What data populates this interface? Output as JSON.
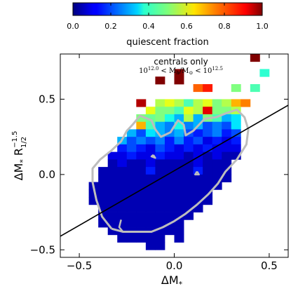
{
  "chart_data": {
    "type": "heatmap",
    "title": "",
    "xlabel": "ΔM_*",
    "ylabel": "ΔM_* R_1/2^-1.5",
    "xlim": [
      -0.6,
      0.6
    ],
    "ylim": [
      -0.55,
      0.8
    ],
    "xticks": [
      -0.5,
      0.0,
      0.5
    ],
    "yticks": [
      -0.5,
      0.0,
      0.5
    ],
    "xtick_labels": [
      "−0.5",
      "0.0",
      "0.5"
    ],
    "ytick_labels": [
      "−0.5",
      "0.0",
      "0.5"
    ],
    "grid": false,
    "bin_width": 0.05,
    "colorbar": {
      "label": "quiescent fraction",
      "min": 0.0,
      "max": 1.0,
      "ticks": [
        0.0,
        0.2,
        0.4,
        0.6,
        0.8,
        1.0
      ],
      "tick_labels": [
        "0.0",
        "0.2",
        "0.4",
        "0.6",
        "0.8",
        "1.0"
      ],
      "colormap": "jet"
    },
    "annotation": {
      "line1": "centrals only",
      "line2_base": "10",
      "line2_exp1": "12.0",
      "line2_mid": "< M",
      "line2_sub": "h",
      "line2_slash": "/M",
      "line2_sun": "⊙",
      "line2_lt": "<",
      "line2_base2": "10",
      "line2_exp2": "12.5"
    },
    "fit_line": {
      "x": [
        -0.6,
        0.6
      ],
      "y": [
        -0.41,
        0.46
      ],
      "color": "#000000"
    },
    "rows": [
      {
        "y": 0.75,
        "cells": [
          [
            0.4,
            1.0
          ]
        ]
      },
      {
        "y": 0.65,
        "cells": [
          [
            0.0,
            1.0
          ],
          [
            0.45,
            0.42
          ]
        ]
      },
      {
        "y": 0.6,
        "cells": [
          [
            -0.1,
            1.0
          ],
          [
            0.0,
            1.0
          ]
        ]
      },
      {
        "y": 0.55,
        "cells": [
          [
            0.1,
            0.78
          ],
          [
            0.15,
            0.85
          ],
          [
            0.3,
            0.5
          ],
          [
            0.4,
            0.45
          ]
        ]
      },
      {
        "y": 0.45,
        "cells": [
          [
            -0.2,
            0.95
          ],
          [
            -0.1,
            0.55
          ],
          [
            -0.05,
            0.6
          ],
          [
            0.0,
            0.55
          ],
          [
            0.05,
            0.45
          ],
          [
            0.1,
            0.55
          ],
          [
            0.15,
            0.6
          ],
          [
            0.2,
            0.5
          ],
          [
            0.25,
            0.55
          ],
          [
            0.3,
            0.7
          ],
          [
            0.35,
            0.75
          ]
        ]
      },
      {
        "y": 0.4,
        "cells": [
          [
            -0.15,
            0.6
          ],
          [
            -0.1,
            0.5
          ],
          [
            -0.05,
            0.5
          ],
          [
            0.0,
            0.45
          ],
          [
            0.05,
            0.6
          ],
          [
            0.1,
            0.55
          ],
          [
            0.15,
            0.9
          ],
          [
            0.2,
            0.5
          ],
          [
            0.25,
            0.5
          ],
          [
            0.3,
            0.55
          ]
        ]
      },
      {
        "y": 0.35,
        "cells": [
          [
            -0.2,
            0.5
          ],
          [
            -0.15,
            0.48
          ],
          [
            -0.1,
            0.5
          ],
          [
            -0.05,
            0.4
          ],
          [
            0.0,
            0.3
          ],
          [
            0.05,
            0.55
          ],
          [
            0.1,
            0.3
          ],
          [
            0.15,
            0.5
          ],
          [
            0.2,
            0.45
          ],
          [
            0.25,
            0.3
          ],
          [
            0.3,
            0.35
          ]
        ]
      },
      {
        "y": 0.3,
        "cells": [
          [
            -0.2,
            0.7
          ],
          [
            -0.15,
            0.45
          ],
          [
            -0.1,
            0.3
          ],
          [
            -0.05,
            0.25
          ],
          [
            0.0,
            0.4
          ],
          [
            0.05,
            0.25
          ],
          [
            0.1,
            0.3
          ],
          [
            0.15,
            0.2
          ],
          [
            0.2,
            0.25
          ],
          [
            0.25,
            0.2
          ],
          [
            0.3,
            0.35
          ]
        ]
      },
      {
        "y": 0.25,
        "cells": [
          [
            -0.25,
            0.3
          ],
          [
            -0.2,
            0.2
          ],
          [
            -0.15,
            0.35
          ],
          [
            -0.1,
            0.3
          ],
          [
            -0.05,
            0.25
          ],
          [
            0.0,
            0.3
          ],
          [
            0.05,
            0.2
          ],
          [
            0.1,
            0.15
          ],
          [
            0.15,
            0.2
          ],
          [
            0.2,
            0.25
          ],
          [
            0.25,
            0.15
          ],
          [
            0.3,
            0.2
          ]
        ]
      },
      {
        "y": 0.2,
        "cells": [
          [
            -0.3,
            0.3
          ],
          [
            -0.25,
            0.2
          ],
          [
            -0.2,
            0.25
          ],
          [
            -0.15,
            0.2
          ],
          [
            -0.1,
            0.25
          ],
          [
            -0.05,
            0.15
          ],
          [
            0.0,
            0.25
          ],
          [
            0.05,
            0.15
          ],
          [
            0.1,
            0.2
          ],
          [
            0.15,
            0.1
          ],
          [
            0.2,
            0.15
          ],
          [
            0.25,
            0.1
          ],
          [
            0.3,
            0.15
          ]
        ]
      },
      {
        "y": 0.15,
        "cells": [
          [
            -0.3,
            0.15
          ],
          [
            -0.25,
            0.2
          ],
          [
            -0.2,
            0.15
          ],
          [
            -0.15,
            0.1
          ],
          [
            -0.1,
            0.2
          ],
          [
            -0.05,
            0.15
          ],
          [
            0.0,
            0.1
          ],
          [
            0.05,
            0.15
          ],
          [
            0.1,
            0.1
          ],
          [
            0.15,
            0.15
          ],
          [
            0.2,
            0.1
          ],
          [
            0.25,
            0.1
          ],
          [
            0.3,
            0.1
          ]
        ]
      },
      {
        "y": 0.1,
        "cells": [
          [
            -0.35,
            0.1
          ],
          [
            -0.3,
            0.1
          ],
          [
            -0.25,
            0.15
          ],
          [
            -0.2,
            0.1
          ],
          [
            -0.15,
            0.1
          ],
          [
            -0.1,
            0.15
          ],
          [
            -0.05,
            0.1
          ],
          [
            0.0,
            0.1
          ],
          [
            0.05,
            0.05
          ],
          [
            0.1,
            0.1
          ],
          [
            0.15,
            0.05
          ],
          [
            0.2,
            0.1
          ],
          [
            0.25,
            0.05
          ],
          [
            0.3,
            0.05
          ]
        ]
      },
      {
        "y": 0.05,
        "cells": [
          [
            -0.35,
            0.05
          ],
          [
            -0.3,
            0.1
          ],
          [
            -0.25,
            0.05
          ],
          [
            -0.2,
            0.05
          ],
          [
            -0.15,
            0.1
          ],
          [
            -0.1,
            0.05
          ],
          [
            -0.05,
            0.05
          ],
          [
            0.0,
            0.05
          ],
          [
            0.05,
            0.05
          ],
          [
            0.1,
            0.1
          ],
          [
            0.15,
            0.05
          ],
          [
            0.2,
            0.05
          ],
          [
            0.25,
            0.05
          ]
        ]
      },
      {
        "y": 0.0,
        "cells": [
          [
            -0.4,
            0.05
          ],
          [
            -0.35,
            0.05
          ],
          [
            -0.3,
            0.05
          ],
          [
            -0.25,
            0.05
          ],
          [
            -0.2,
            0.05
          ],
          [
            -0.15,
            0.15
          ],
          [
            -0.1,
            0.05
          ],
          [
            -0.05,
            0.05
          ],
          [
            0.0,
            0.05
          ],
          [
            0.05,
            0.05
          ],
          [
            0.1,
            0.15
          ],
          [
            0.15,
            0.05
          ],
          [
            0.2,
            0.05
          ],
          [
            0.25,
            0.05
          ]
        ]
      },
      {
        "y": -0.05,
        "cells": [
          [
            -0.4,
            0.05
          ],
          [
            -0.35,
            0.05
          ],
          [
            -0.3,
            0.05
          ],
          [
            -0.25,
            0.05
          ],
          [
            -0.2,
            0.05
          ],
          [
            -0.15,
            0.05
          ],
          [
            -0.1,
            0.05
          ],
          [
            -0.05,
            0.05
          ],
          [
            0.0,
            0.05
          ],
          [
            0.05,
            0.05
          ],
          [
            0.1,
            0.05
          ],
          [
            0.15,
            0.05
          ],
          [
            0.2,
            0.05
          ],
          [
            0.25,
            0.05
          ]
        ]
      },
      {
        "y": -0.1,
        "cells": [
          [
            -0.45,
            0.05
          ],
          [
            -0.4,
            0.05
          ],
          [
            -0.35,
            0.05
          ],
          [
            -0.3,
            0.05
          ],
          [
            -0.25,
            0.05
          ],
          [
            -0.2,
            0.05
          ],
          [
            -0.15,
            0.05
          ],
          [
            -0.1,
            0.05
          ],
          [
            -0.05,
            0.05
          ],
          [
            0.0,
            0.05
          ],
          [
            0.05,
            0.05
          ],
          [
            0.1,
            0.05
          ],
          [
            0.15,
            0.05
          ],
          [
            0.2,
            0.05
          ]
        ]
      },
      {
        "y": -0.15,
        "cells": [
          [
            -0.45,
            0.05
          ],
          [
            -0.4,
            0.05
          ],
          [
            -0.35,
            0.05
          ],
          [
            -0.3,
            0.05
          ],
          [
            -0.25,
            0.05
          ],
          [
            -0.2,
            0.05
          ],
          [
            -0.15,
            0.05
          ],
          [
            -0.1,
            0.05
          ],
          [
            -0.05,
            0.05
          ],
          [
            0.0,
            0.05
          ],
          [
            0.05,
            0.05
          ],
          [
            0.1,
            0.05
          ],
          [
            0.15,
            0.05
          ]
        ]
      },
      {
        "y": -0.2,
        "cells": [
          [
            -0.45,
            0.05
          ],
          [
            -0.4,
            0.05
          ],
          [
            -0.35,
            0.05
          ],
          [
            -0.3,
            0.05
          ],
          [
            -0.25,
            0.05
          ],
          [
            -0.2,
            0.05
          ],
          [
            -0.15,
            0.05
          ],
          [
            -0.1,
            0.05
          ],
          [
            -0.05,
            0.05
          ],
          [
            0.0,
            0.05
          ],
          [
            0.05,
            0.05
          ],
          [
            0.1,
            0.05
          ],
          [
            0.15,
            0.05
          ]
        ]
      },
      {
        "y": -0.25,
        "cells": [
          [
            -0.4,
            0.05
          ],
          [
            -0.35,
            0.05
          ],
          [
            -0.3,
            0.05
          ],
          [
            -0.25,
            0.05
          ],
          [
            -0.2,
            0.05
          ],
          [
            -0.15,
            0.05
          ],
          [
            -0.1,
            0.05
          ],
          [
            -0.05,
            0.05
          ],
          [
            0.0,
            0.05
          ],
          [
            0.05,
            0.05
          ],
          [
            0.1,
            0.05
          ]
        ]
      },
      {
        "y": -0.3,
        "cells": [
          [
            -0.4,
            0.05
          ],
          [
            -0.35,
            0.05
          ],
          [
            -0.3,
            0.05
          ],
          [
            -0.25,
            0.05
          ],
          [
            -0.2,
            0.05
          ],
          [
            -0.15,
            0.05
          ],
          [
            -0.1,
            0.05
          ],
          [
            -0.05,
            0.05
          ],
          [
            0.0,
            0.05
          ],
          [
            0.05,
            0.05
          ]
        ]
      },
      {
        "y": -0.35,
        "cells": [
          [
            -0.4,
            0.05
          ],
          [
            -0.35,
            0.05
          ],
          [
            -0.3,
            0.05
          ],
          [
            -0.25,
            0.05
          ],
          [
            -0.2,
            0.05
          ],
          [
            -0.15,
            0.05
          ],
          [
            -0.1,
            0.05
          ],
          [
            -0.05,
            0.05
          ],
          [
            0.0,
            0.05
          ]
        ]
      },
      {
        "y": -0.4,
        "cells": [
          [
            -0.35,
            0.05
          ],
          [
            -0.3,
            0.05
          ],
          [
            -0.25,
            0.05
          ],
          [
            -0.2,
            0.05
          ],
          [
            -0.15,
            0.05
          ],
          [
            -0.1,
            0.05
          ],
          [
            -0.05,
            0.05
          ],
          [
            0.0,
            0.05
          ]
        ]
      },
      {
        "y": -0.45,
        "cells": [
          [
            -0.3,
            0.05
          ],
          [
            -0.25,
            0.05
          ],
          [
            -0.2,
            0.05
          ],
          [
            -0.15,
            0.05
          ],
          [
            -0.1,
            0.05
          ],
          [
            0.0,
            0.05
          ]
        ]
      },
      {
        "y": -0.5,
        "cells": [
          [
            -0.15,
            0.05
          ],
          [
            -0.1,
            0.05
          ]
        ]
      }
    ],
    "contours": {
      "color": "#bdbdbd",
      "outer": [
        [
          -0.33,
          -0.36
        ],
        [
          -0.38,
          -0.28
        ],
        [
          -0.41,
          -0.17
        ],
        [
          -0.43,
          -0.05
        ],
        [
          -0.43,
          0.04
        ],
        [
          -0.39,
          0.1
        ],
        [
          -0.33,
          0.16
        ],
        [
          -0.28,
          0.22
        ],
        [
          -0.25,
          0.29
        ],
        [
          -0.22,
          0.33
        ],
        [
          -0.18,
          0.39
        ],
        [
          -0.12,
          0.36
        ],
        [
          -0.1,
          0.3
        ],
        [
          -0.07,
          0.25
        ],
        [
          -0.02,
          0.28
        ],
        [
          0.02,
          0.36
        ],
        [
          0.05,
          0.33
        ],
        [
          0.06,
          0.26
        ],
        [
          0.1,
          0.29
        ],
        [
          0.16,
          0.37
        ],
        [
          0.22,
          0.38
        ],
        [
          0.28,
          0.41
        ],
        [
          0.33,
          0.43
        ],
        [
          0.37,
          0.38
        ],
        [
          0.39,
          0.3
        ],
        [
          0.38,
          0.2
        ],
        [
          0.33,
          0.1
        ],
        [
          0.27,
          0.02
        ],
        [
          0.23,
          -0.06
        ],
        [
          0.18,
          -0.13
        ],
        [
          0.12,
          -0.2
        ],
        [
          0.06,
          -0.26
        ],
        [
          0.0,
          -0.31
        ],
        [
          -0.06,
          -0.35
        ],
        [
          -0.12,
          -0.38
        ],
        [
          -0.2,
          -0.38
        ],
        [
          -0.27,
          -0.38
        ],
        [
          -0.33,
          -0.36
        ]
      ],
      "inner_a": [
        [
          -0.28,
          -0.3
        ],
        [
          -0.29,
          -0.35
        ],
        [
          -0.27,
          -0.38
        ]
      ],
      "inner_b": [
        [
          -0.11,
          0.13
        ],
        [
          -0.1,
          0.11
        ],
        [
          -0.12,
          0.12
        ],
        [
          -0.11,
          0.13
        ]
      ],
      "inner_c": [
        [
          0.12,
          0.02
        ],
        [
          0.13,
          0.0
        ],
        [
          0.11,
          0.0
        ],
        [
          0.12,
          0.02
        ]
      ]
    }
  }
}
